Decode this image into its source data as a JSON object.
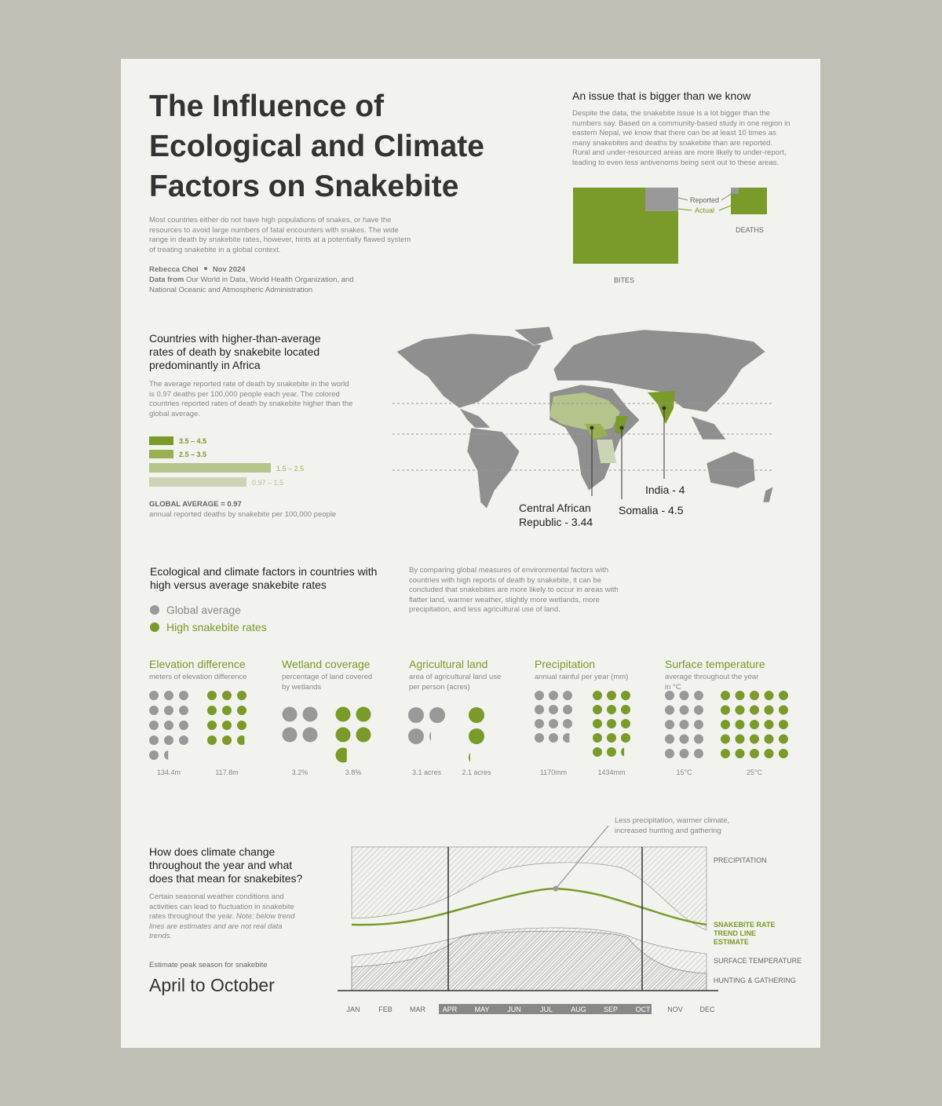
{
  "header": {
    "title": "The Influence of Ecological and Climate Factors on Snakebite",
    "intro": "Most countries either do not have high populations of snakes, or have the resources to avoid large numbers of fatal encounters with snakes. The wide range in death by snakebite rates, however, hints at a potentially flawed system of treating snakebite in a global context.",
    "author": "Rebecca Choi",
    "date": "Nov 2024",
    "sources_label": "Data from",
    "sources": "Our World in Data, World Health Organization, and National Oceanic and Atmospheric Administration"
  },
  "issue": {
    "title": "An issue that is bigger than we know",
    "body": "Despite the data, the snakebite issue is a lot bigger than the numbers say. Based on a community-based study in one region in eastern Nepal, we know that there can be at least 10 times as many snakebites and deaths by snakebite than are reported. Rural and under-resourced areas are more likely to under-report, leading to even less antivenoms being sent out to these areas.",
    "reported": "Reported",
    "actual": "Actual",
    "bites": "BITES",
    "deaths": "DEATHS"
  },
  "map": {
    "title": "Countries with higher-than-average rates of death by snakebite located predominantly in Africa",
    "body": "The average reported rate of death by snakebite in the world is 0.97 deaths per 100,000 people each year. The colored countries reported rates of death by snakebite higher than the global average.",
    "legend": [
      "3.5 – 4.5",
      "2.5 – 3.5",
      "1.5 – 2.5",
      "0.97 – 1.5"
    ],
    "global_average": "GLOBAL AVERAGE = 0.97",
    "global_average_note": "annual reported deaths by snakebite per 100,000 people",
    "callouts": [
      "Central African Republic - 3.44",
      "Somalia - 4.5",
      "India - 4"
    ]
  },
  "factors": {
    "title": "Ecological and climate factors in countries with high versus average snakebite rates",
    "body": "By comparing global measures of environmental factors with countries with high reports of death by snakebite, it can be concluded that snakebites are more likely to occur in areas with flatter land, warmer weather, slightly more wetlands, more precipitation, and less agricultural use of land.",
    "legend": [
      "Global average",
      "High snakebite rates"
    ],
    "charts": [
      {
        "title": "Elevation difference",
        "subtitle": "meters of elevation difference",
        "values": [
          {
            "value": 134.4,
            "label": "134.4m"
          },
          {
            "value": 117.8,
            "label": "117.8m"
          }
        ]
      },
      {
        "title": "Wetland coverage",
        "subtitle": "percentage of land covered by wetlands",
        "values": [
          {
            "value": 3.2,
            "label": "3.2%"
          },
          {
            "value": 3.8,
            "label": "3.8%"
          }
        ]
      },
      {
        "title": "Agricultural land",
        "subtitle": "area of agricultural land use per person (acres)",
        "values": [
          {
            "value": 3.1,
            "label": "3.1 acres"
          },
          {
            "value": 2.1,
            "label": "2.1 acres"
          }
        ]
      },
      {
        "title": "Precipitation",
        "subtitle": "annual rainful per year (mm)",
        "values": [
          {
            "value": 1170,
            "label": "1170mm"
          },
          {
            "value": 1434,
            "label": "1434mm"
          }
        ]
      },
      {
        "title": "Surface temperature",
        "subtitle": "average throughout the year in °C",
        "values": [
          {
            "value": 15,
            "label": "15°C"
          },
          {
            "value": 25,
            "label": "25°C"
          }
        ]
      }
    ]
  },
  "season": {
    "title": "How does climate change throughout the year and what does that mean for snakebites?",
    "body": "Certain seasonal weather conditions and activities can lead to fluctuation in snakebite rates throughout the year.",
    "note": "Note: below trend lines are estimates and are not real data trends.",
    "peak_label": "Estimate peak season for snakebite",
    "peak": "April to October",
    "annotation": "Less precipitation, warmer climate, increased hunting and gathering",
    "layers": [
      "PRECIPITATION",
      "SNAKEBITE RATE TREND LINE ESTIMATE",
      "SURFACE TEMPERATURE",
      "HUNTING & GATHERING"
    ],
    "months": [
      "JAN",
      "FEB",
      "MAR",
      "APR",
      "MAY",
      "JUN",
      "JUL",
      "AUG",
      "SEP",
      "OCT",
      "NOV",
      "DEC"
    ]
  }
}
